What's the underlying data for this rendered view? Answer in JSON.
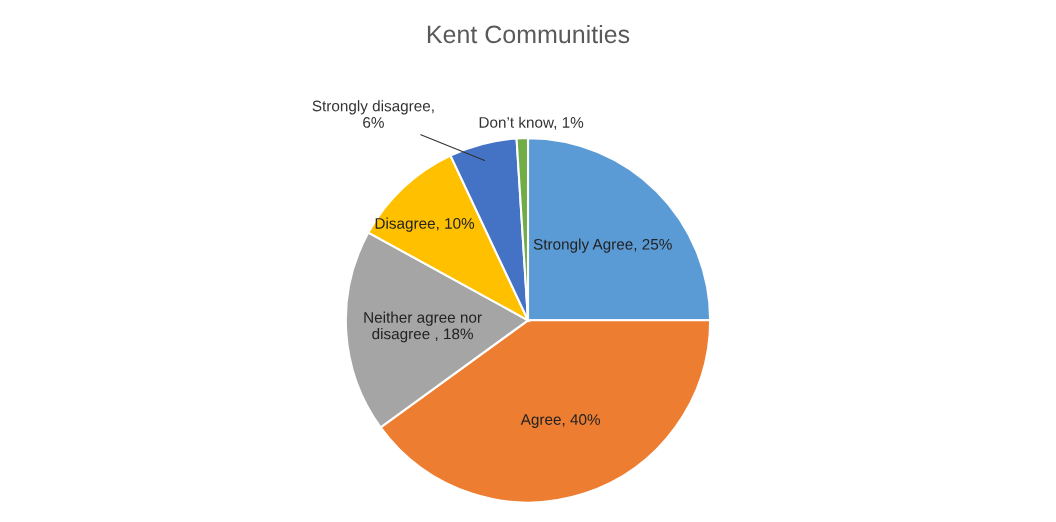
{
  "chart_data": {
    "type": "pie",
    "title": "Kent Communities",
    "categories": [
      "Strongly Agree, 25%",
      "Agree, 40%",
      "Neither agree nor disagree , 18%",
      "Disagree, 10%",
      "Strongly disagree, 6%",
      "Don’t know, 1%"
    ],
    "values": [
      25,
      40,
      18,
      10,
      6,
      1
    ],
    "colors": [
      "#5b9bd5",
      "#ed7d31",
      "#a5a5a5",
      "#ffc000",
      "#4472c4",
      "#70ad47"
    ],
    "legend": false
  }
}
